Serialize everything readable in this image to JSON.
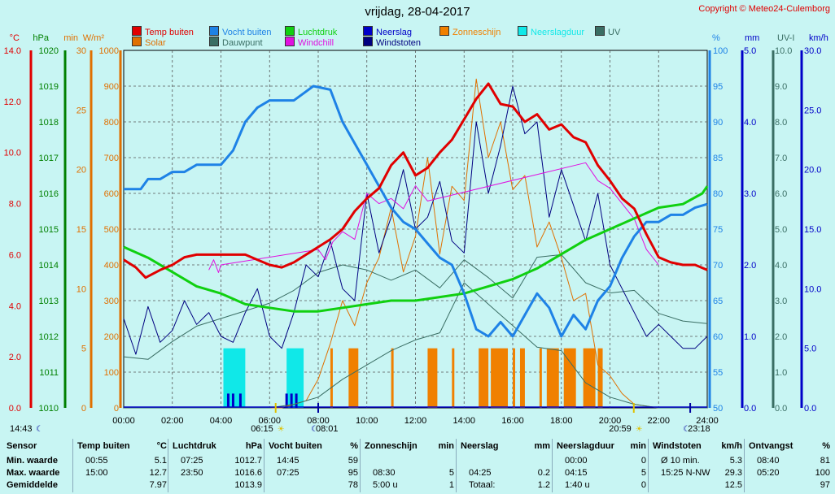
{
  "title": "vrijdag, 28-04-2017",
  "copyright": "Copyright © Meteo24-Culemborg",
  "legend": [
    {
      "label": "Temp buiten",
      "color": "#e00000"
    },
    {
      "label": "Solar",
      "color": "#e07000"
    },
    {
      "label": "Vocht buiten",
      "color": "#1e82e6"
    },
    {
      "label": "Dauwpunt",
      "color": "#3a6e64"
    },
    {
      "label": "Luchtdruk",
      "color": "#10d010"
    },
    {
      "label": "Windchill",
      "color": "#e010e0"
    },
    {
      "label": "Neerslag",
      "color": "#0000c8"
    },
    {
      "label": "Windstoten",
      "color": "#000080"
    },
    {
      "label": "Zonneschijn",
      "color": "#f08000"
    },
    {
      "label": "Neerslagduur",
      "color": "#10e8e8"
    },
    {
      "label": "UV",
      "color": "#3a6e64"
    }
  ],
  "chart_data": {
    "type": "line",
    "x_range": [
      0,
      24
    ],
    "x_ticks": [
      "00:00",
      "02:00",
      "04:00",
      "06:00",
      "08:00",
      "10:00",
      "12:00",
      "14:00",
      "16:00",
      "18:00",
      "20:00",
      "22:00",
      "24:00"
    ],
    "axes": {
      "temp": {
        "unit": "°C",
        "min": 0,
        "max": 14,
        "ticks": [
          "0.0",
          "2.0",
          "4.0",
          "6.0",
          "8.0",
          "10.0",
          "12.0",
          "14.0"
        ]
      },
      "pressure": {
        "unit": "hPa",
        "min": 1010,
        "max": 1020,
        "ticks": [
          "1010",
          "1011",
          "1012",
          "1013",
          "1014",
          "1015",
          "1016",
          "1017",
          "1018",
          "1019",
          "1020"
        ]
      },
      "minutes": {
        "unit": "min",
        "min": 0,
        "max": 30,
        "ticks": [
          "0",
          "5",
          "10",
          "15",
          "20",
          "25",
          "30"
        ]
      },
      "solar": {
        "unit": "W/m²",
        "min": 0,
        "max": 1000,
        "ticks": [
          "0",
          "100",
          "200",
          "300",
          "400",
          "500",
          "600",
          "700",
          "800",
          "900",
          "1000"
        ]
      },
      "humidity": {
        "unit": "%",
        "min": 50,
        "max": 100,
        "ticks": [
          "50",
          "55",
          "60",
          "65",
          "70",
          "75",
          "80",
          "85",
          "90",
          "95",
          "100"
        ]
      },
      "rain": {
        "unit": "mm",
        "min": 0,
        "max": 5,
        "ticks": [
          "0.0",
          "1.0",
          "2.0",
          "3.0",
          "4.0",
          "5.0"
        ]
      },
      "uv": {
        "unit": "UV-I",
        "min": 0,
        "max": 10,
        "ticks": [
          "0.0",
          "1.0",
          "2.0",
          "3.0",
          "4.0",
          "5.0",
          "6.0",
          "7.0",
          "8.0",
          "9.0",
          "10.0"
        ]
      },
      "wind": {
        "unit": "km/h",
        "min": 0,
        "max": 30,
        "ticks": [
          "0.0",
          "5.0",
          "10.0",
          "15.0",
          "20.0",
          "25.0",
          "30.0"
        ]
      }
    },
    "series": [
      {
        "name": "Temp buiten",
        "axis": "temp",
        "color": "#e00000",
        "width": 3,
        "x": [
          0,
          0.5,
          0.9,
          1.5,
          2,
          2.5,
          3,
          3.5,
          4,
          4.5,
          5,
          5.5,
          6,
          6.5,
          7,
          7.5,
          8,
          8.5,
          9,
          9.5,
          10,
          10.5,
          11,
          11.5,
          12,
          12.5,
          13,
          13.5,
          14,
          14.5,
          15,
          15.5,
          16,
          16.5,
          17,
          17.5,
          18,
          18.5,
          19,
          19.5,
          20,
          20.5,
          21,
          21.5,
          22,
          22.5,
          23,
          23.5,
          24
        ],
        "values": [
          5.8,
          5.5,
          5.1,
          5.4,
          5.6,
          5.9,
          6.0,
          6.0,
          6.0,
          6.0,
          6.0,
          5.8,
          5.6,
          5.5,
          5.7,
          6.0,
          6.3,
          6.6,
          7.0,
          7.7,
          8.2,
          8.6,
          9.5,
          10.0,
          9.1,
          9.4,
          10.0,
          10.5,
          11.3,
          12.1,
          12.7,
          11.9,
          11.8,
          11.2,
          11.5,
          10.9,
          11.1,
          10.6,
          10.4,
          9.5,
          8.9,
          8.2,
          7.8,
          6.8,
          5.9,
          5.7,
          5.6,
          5.6,
          5.4
        ]
      },
      {
        "name": "Windchill",
        "axis": "temp",
        "color": "#e010e0",
        "width": 1,
        "x": [
          3.5,
          3.7,
          3.9,
          4.0,
          8.0,
          8.3,
          8.6,
          9.0,
          9.5,
          10.0,
          10.5,
          11.0,
          11.5,
          12.0,
          12.5,
          19.0,
          19.5,
          20.0,
          20.5,
          21.0,
          21.5,
          22.0
        ],
        "values": [
          5.4,
          5.8,
          5.3,
          5.6,
          6.2,
          5.8,
          6.5,
          6.9,
          6.6,
          8.4,
          8.0,
          8.2,
          7.8,
          8.7,
          8.1,
          9.6,
          8.9,
          8.6,
          8.0,
          7.4,
          6.2,
          5.6
        ]
      },
      {
        "name": "Vocht buiten",
        "axis": "humidity",
        "color": "#1e82e6",
        "width": 3,
        "x": [
          0,
          0.7,
          1.0,
          1.5,
          2.0,
          2.5,
          3.0,
          3.5,
          4.0,
          4.5,
          5.0,
          5.5,
          6.0,
          6.5,
          7.0,
          7.4,
          7.8,
          8.5,
          9.0,
          9.5,
          10.0,
          10.5,
          11.0,
          11.5,
          12.0,
          12.5,
          13.0,
          13.5,
          14.0,
          14.5,
          15.0,
          15.5,
          16.0,
          16.5,
          17.0,
          17.5,
          18.0,
          18.5,
          19.0,
          19.5,
          20.0,
          20.5,
          21.0,
          21.5,
          22.0,
          22.5,
          23.0,
          23.5,
          24.0
        ],
        "values": [
          80.6,
          80.6,
          82.0,
          82.0,
          83.0,
          83.0,
          84.0,
          84.0,
          84.0,
          86.0,
          90.0,
          92.0,
          93.0,
          93.0,
          93.0,
          94.0,
          95.0,
          94.5,
          90.0,
          87.0,
          84.0,
          81.0,
          78.0,
          76.0,
          75.0,
          73.0,
          71.0,
          70.0,
          66.0,
          61.0,
          60.0,
          62.0,
          60.0,
          63.0,
          66.0,
          64.0,
          60.0,
          63.0,
          61.0,
          65.0,
          67.0,
          71.0,
          74.0,
          76.0,
          76.0,
          77.0,
          77.0,
          78.0,
          78.5
        ]
      },
      {
        "name": "Luchtdruk",
        "axis": "pressure",
        "color": "#10d010",
        "width": 3,
        "x": [
          0,
          1,
          2,
          3,
          4,
          5,
          6,
          7,
          8,
          9,
          10,
          11,
          12,
          13,
          14,
          15,
          16,
          17,
          18,
          19,
          20,
          21,
          22,
          23,
          23.8,
          24
        ],
        "values": [
          1014.5,
          1014.2,
          1013.8,
          1013.4,
          1013.2,
          1012.9,
          1012.8,
          1012.7,
          1012.7,
          1012.8,
          1012.9,
          1013.0,
          1013.0,
          1013.1,
          1013.2,
          1013.4,
          1013.6,
          1013.9,
          1014.3,
          1014.7,
          1015.0,
          1015.3,
          1015.6,
          1015.7,
          1016.0,
          1016.2
        ]
      },
      {
        "name": "Dauwpunt",
        "axis": "temp",
        "color": "#3a6e64",
        "width": 1,
        "x": [
          0,
          1,
          2,
          3,
          4,
          5,
          6,
          7,
          8,
          9,
          10,
          11,
          12,
          13,
          14,
          15,
          16,
          17,
          18,
          19,
          20,
          21,
          22,
          23,
          24
        ],
        "values": [
          2.0,
          1.9,
          2.6,
          3.2,
          3.5,
          3.8,
          4.1,
          4.6,
          5.3,
          5.6,
          5.4,
          5.0,
          5.4,
          4.7,
          5.8,
          5.1,
          4.3,
          5.9,
          6.0,
          4.9,
          4.5,
          4.6,
          3.7,
          3.4,
          3.3
        ]
      },
      {
        "name": "UV",
        "axis": "uv",
        "color": "#3a6e64",
        "width": 1,
        "x": [
          0,
          2,
          4,
          5,
          6,
          7,
          8,
          9,
          10,
          11,
          12,
          13,
          14,
          15,
          16,
          17,
          18,
          19,
          20,
          21,
          22,
          23,
          24
        ],
        "values": [
          0,
          0,
          0,
          0,
          0,
          0.1,
          0.3,
          0.8,
          1.2,
          1.6,
          1.9,
          2.1,
          3.5,
          2.9,
          2.3,
          1.7,
          1.6,
          0.7,
          0.3,
          0.1,
          0,
          0,
          0
        ]
      },
      {
        "name": "Windstoten",
        "axis": "wind",
        "color": "#000080",
        "width": 1,
        "x": [
          0,
          0.5,
          1,
          1.5,
          2,
          2.5,
          3,
          3.5,
          4,
          4.5,
          5,
          5.5,
          6,
          6.5,
          7,
          7.5,
          8,
          8.5,
          9,
          9.5,
          10,
          10.5,
          11,
          11.5,
          12,
          12.5,
          13,
          13.5,
          14,
          14.5,
          15,
          15.5,
          16,
          16.5,
          17,
          17.5,
          18,
          18.5,
          19,
          19.5,
          20,
          20.5,
          21,
          21.5,
          22,
          22.5,
          23,
          23.5,
          24
        ],
        "values": [
          7.5,
          4.5,
          8.5,
          5.5,
          6.5,
          9,
          7,
          8,
          6,
          5.5,
          8,
          10,
          6,
          5,
          8,
          12,
          11,
          14,
          10,
          9,
          18,
          13,
          16,
          20,
          15,
          16,
          19,
          14,
          13,
          24,
          18,
          22,
          27,
          23,
          24,
          16,
          20,
          17,
          14,
          18,
          12,
          10,
          8,
          6,
          7,
          6,
          5,
          5,
          6
        ]
      },
      {
        "name": "Solar",
        "axis": "solar",
        "color": "#e07000",
        "width": 1,
        "x": [
          0,
          6.5,
          7.5,
          8,
          8.5,
          9,
          9.5,
          10,
          10.5,
          11,
          11.5,
          12,
          12.5,
          13,
          13.5,
          14,
          14.5,
          15,
          15.5,
          16,
          16.5,
          17,
          17.5,
          18,
          18.5,
          19,
          19.5,
          20,
          20.5,
          21,
          22,
          24
        ],
        "values": [
          0,
          0,
          20,
          80,
          180,
          300,
          230,
          350,
          420,
          560,
          380,
          480,
          700,
          430,
          620,
          580,
          920,
          700,
          800,
          610,
          650,
          450,
          520,
          420,
          300,
          320,
          120,
          90,
          40,
          10,
          0,
          0
        ]
      }
    ],
    "bars": [
      {
        "name": "Neerslagduur",
        "axis": "minutes",
        "color": "#10e8e8",
        "segments": [
          {
            "from": 4.1,
            "to": 5.0,
            "value": 5
          },
          {
            "from": 6.7,
            "to": 7.4,
            "value": 5
          }
        ]
      },
      {
        "name": "Neerslag",
        "axis": "rain",
        "color": "#0000c8",
        "segments": [
          {
            "from": 4.25,
            "to": 4.35,
            "value": 0.2
          },
          {
            "from": 4.45,
            "to": 4.55,
            "value": 0.2
          },
          {
            "from": 4.75,
            "to": 4.85,
            "value": 0.2
          },
          {
            "from": 6.65,
            "to": 6.75,
            "value": 0.2
          },
          {
            "from": 6.85,
            "to": 6.95,
            "value": 0.2
          },
          {
            "from": 7.05,
            "to": 7.15,
            "value": 0.2
          }
        ]
      },
      {
        "name": "Zonneschijn",
        "axis": "minutes",
        "color": "#f08000",
        "segments": [
          {
            "from": 8.5,
            "to": 8.6,
            "value": 5
          },
          {
            "from": 9.25,
            "to": 9.65,
            "value": 5
          },
          {
            "from": 11.0,
            "to": 11.1,
            "value": 5
          },
          {
            "from": 12.5,
            "to": 12.9,
            "value": 5
          },
          {
            "from": 13.5,
            "to": 13.6,
            "value": 5
          },
          {
            "from": 14.6,
            "to": 15.0,
            "value": 5
          },
          {
            "from": 15.1,
            "to": 15.8,
            "value": 5
          },
          {
            "from": 16.0,
            "to": 16.1,
            "value": 5
          },
          {
            "from": 16.3,
            "to": 16.5,
            "value": 5
          },
          {
            "from": 17.1,
            "to": 17.2,
            "value": 5
          },
          {
            "from": 17.4,
            "to": 17.9,
            "value": 5
          },
          {
            "from": 18.1,
            "to": 18.6,
            "value": 5
          },
          {
            "from": 18.9,
            "to": 19.4,
            "value": 5
          },
          {
            "from": 19.5,
            "to": 19.7,
            "value": 5
          }
        ]
      }
    ],
    "events": [
      {
        "time_label": "14:43",
        "kind": "moon-set",
        "x": -0.3
      },
      {
        "time_label": "06:15",
        "kind": "sunrise",
        "x": 6.25
      },
      {
        "time_label": "08:01",
        "kind": "moon-rise",
        "x": 8.0
      },
      {
        "time_label": "20:59",
        "kind": "sunset",
        "x": 20.98
      },
      {
        "time_label": "23:18",
        "kind": "moon-set",
        "x": 23.3
      }
    ]
  },
  "stats": {
    "headers": [
      {
        "label": "Sensor",
        "unit": ""
      },
      {
        "label": "Temp buiten",
        "unit": "°C"
      },
      {
        "label": "Luchtdruk",
        "unit": "hPa"
      },
      {
        "label": "Vocht buiten",
        "unit": "%"
      },
      {
        "label": "Zonneschijn",
        "unit": "min"
      },
      {
        "label": "Neerslag",
        "unit": "mm"
      },
      {
        "label": "Neerslagduur",
        "unit": "min"
      },
      {
        "label": "Windstoten",
        "unit": "km/h"
      },
      {
        "label": "Ontvangst",
        "unit": "%"
      }
    ],
    "rows": [
      {
        "label": "Min. waarde",
        "cols": [
          [
            "00:55",
            "5.1"
          ],
          [
            "07:25",
            "1012.7"
          ],
          [
            "14:45",
            "59"
          ],
          [
            "",
            ""
          ],
          [
            "",
            ""
          ],
          [
            "00:00",
            "0"
          ],
          [
            "Ø 10 min.",
            "5.3"
          ],
          [
            "08:40",
            "81"
          ]
        ]
      },
      {
        "label": "Max. waarde",
        "cols": [
          [
            "15:00",
            "12.7"
          ],
          [
            "23:50",
            "1016.6"
          ],
          [
            "07:25",
            "95"
          ],
          [
            "08:30",
            "5"
          ],
          [
            "04:25",
            "0.2"
          ],
          [
            "04:15",
            "5"
          ],
          [
            "15:25  N-NW",
            "29.3"
          ],
          [
            "05:20",
            "100"
          ]
        ]
      },
      {
        "label": "Gemiddelde",
        "cols": [
          [
            "",
            "7.97"
          ],
          [
            "",
            "1013.9"
          ],
          [
            "",
            "78"
          ],
          [
            "5:00 u",
            "1"
          ],
          [
            "Totaal:",
            "1.2"
          ],
          [
            "1:40 u",
            "0"
          ],
          [
            "",
            "12.5"
          ],
          [
            "",
            "97"
          ]
        ]
      }
    ]
  }
}
